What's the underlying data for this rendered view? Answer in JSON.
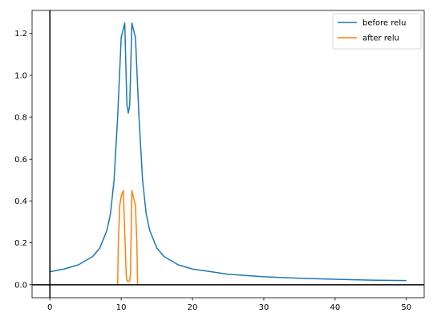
{
  "chart_data": {
    "type": "line",
    "title": "",
    "xlabel": "",
    "ylabel": "",
    "xlim": [
      -2.5,
      52.5
    ],
    "ylim": [
      -0.062,
      1.31
    ],
    "xticks": [
      0,
      10,
      20,
      30,
      40,
      50
    ],
    "yticks": [
      0.0,
      0.2,
      0.4,
      0.6,
      0.8,
      1.0,
      1.2
    ],
    "xtick_labels": [
      "0",
      "10",
      "20",
      "30",
      "40",
      "50"
    ],
    "ytick_labels": [
      "0.0",
      "0.2",
      "0.4",
      "0.6",
      "0.8",
      "1.0",
      "1.2"
    ],
    "grid": false,
    "legend_position": "top-right",
    "reference_lines": {
      "x": 0,
      "y": 0
    },
    "series": [
      {
        "name": "before relu",
        "color": "#1f77b4",
        "x": [
          0,
          2,
          4,
          6,
          7,
          8,
          8.5,
          9,
          9.5,
          10,
          10.5,
          10.8,
          11,
          11.2,
          11.5,
          12,
          12.5,
          13,
          13.5,
          14,
          15,
          16,
          18,
          20,
          25,
          30,
          35,
          40,
          45,
          50
        ],
        "y": [
          0.062,
          0.075,
          0.095,
          0.135,
          0.175,
          0.26,
          0.34,
          0.5,
          0.8,
          1.18,
          1.25,
          0.86,
          0.82,
          0.86,
          1.25,
          1.18,
          0.8,
          0.5,
          0.34,
          0.26,
          0.175,
          0.135,
          0.095,
          0.075,
          0.05,
          0.038,
          0.031,
          0.026,
          0.022,
          0.02
        ]
      },
      {
        "name": "after relu",
        "color": "#ff7f0e",
        "x": [
          9.5,
          9.6,
          9.8,
          10,
          10.3,
          10.5,
          10.7,
          10.8,
          11,
          11.2,
          11.3,
          11.5,
          11.7,
          12,
          12.2,
          12.3,
          12.5
        ],
        "y": [
          0,
          0.2,
          0.38,
          0.42,
          0.45,
          0.25,
          0.05,
          0.02,
          0.015,
          0.02,
          0.05,
          0.45,
          0.42,
          0.38,
          0.2,
          0,
          0
        ]
      }
    ]
  }
}
